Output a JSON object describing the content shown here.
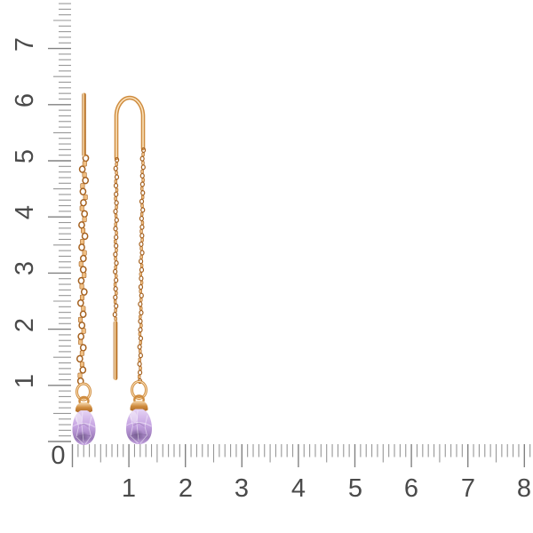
{
  "scene": {
    "type": "product-photo",
    "subject": "Pair of gold threader chain earrings with faceted purple briolette gemstone drops, photographed on white against centimeter rulers",
    "background": "#ffffff"
  },
  "rulers": {
    "origin_label": "0",
    "vertical": {
      "labels": [
        "7",
        "6",
        "5",
        "4",
        "3",
        "2",
        "1"
      ]
    },
    "horizontal": {
      "labels": [
        "1",
        "2",
        "3",
        "4",
        "5",
        "6",
        "7",
        "8"
      ]
    }
  },
  "colors": {
    "background": "#ffffff",
    "gold-dark": "#a5611f",
    "gold-mid": "#cf8c3f",
    "gold-light": "#f0bf83",
    "gold-highlight": "#fbe3bd",
    "amethyst-light": "#e6d4f4",
    "amethyst-mid": "#c6a4e2",
    "amethyst-deep": "#9a7ab8",
    "amethyst-dark": "#5f4a78",
    "tick-color": "#979797",
    "tick-major-color": "#818181",
    "label-color": "#4a4a4a"
  }
}
